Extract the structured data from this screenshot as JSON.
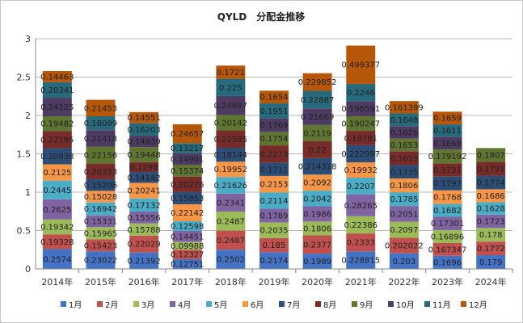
{
  "chart_data": {
    "type": "bar",
    "stacked": true,
    "title": "QYLD　分配金推移",
    "xlabel": "",
    "ylabel": "",
    "ylim": [
      0,
      3
    ],
    "yticks": [
      "0",
      "0.5",
      "1",
      "1.5",
      "2",
      "2.5",
      "3"
    ],
    "grid": true,
    "legend_position": "bottom",
    "categories": [
      "2014年",
      "2015年",
      "2016年",
      "2017年",
      "2018年",
      "2019年",
      "2020年",
      "2021年",
      "2022年",
      "2023年",
      "2024年"
    ],
    "series": [
      {
        "name": "1月",
        "color": "#4472C4",
        "values": [
          0.2574,
          0.23022,
          0.21392,
          0.12751,
          0.2502,
          0.2174,
          0.1989,
          0.228815,
          0.203,
          0.1696,
          0.179
        ]
      },
      {
        "name": "2月",
        "color": "#C0504D",
        "values": [
          0.19328,
          0.15423,
          0.22029,
          0.12327,
          0.2487,
          0.185,
          0.2377,
          0.2333,
          0.202022,
          0.167347,
          0.1772
        ]
      },
      {
        "name": "3月",
        "color": "#9BBB59",
        "values": [
          0.19342,
          0.15965,
          0.15788,
          0.09988,
          0.2487,
          0.2035,
          0.1806,
          0.22386,
          0.2097,
          0.16896,
          0.178
        ]
      },
      {
        "name": "4月",
        "color": "#8064A2",
        "values": [
          0.2625,
          0.15331,
          0.15556,
          0.14451,
          0.2341,
          0.1789,
          0.1986,
          0.28265,
          0.2051,
          0.17301,
          0.1723
        ]
      },
      {
        "name": "5月",
        "color": "#4BACC6",
        "values": [
          0.2445,
          0.16942,
          0.17132,
          0.12598,
          0.21626,
          0.2114,
          0.2042,
          0.2207,
          0.1785,
          0.1682,
          0.1628
        ]
      },
      {
        "name": "6月",
        "color": "#F79646",
        "values": [
          0.2125,
          0.15028,
          0.20241,
          0.22142,
          0.19952,
          0.2153,
          0.2092,
          0.19932,
          0.1806,
          0.1768,
          0.1686
        ]
      },
      {
        "name": "7月",
        "color": "#2C4D75",
        "values": [
          0.20938,
          0.15206,
          0.14142,
          0.15853,
          0.18144,
          0.1711,
          0.214328,
          0.222997,
          0.1735,
          0.1797,
          0.1774
        ]
      },
      {
        "name": "8月",
        "color": "#772C2A",
        "values": [
          0.22185,
          0.20353,
          0.1298,
          0.20276,
          0.22585,
          0.2273,
          0.22,
          0.18781,
          0.1813,
          0.1731,
          0.1791
        ]
      },
      {
        "name": "9月",
        "color": "#5F7530",
        "values": [
          0.19482,
          0.22156,
          0.19448,
          0.15374,
          0.20142,
          0.1754,
          0.2119,
          0.190247,
          0.1653,
          0.179192,
          0.1807
        ]
      },
      {
        "name": "10月",
        "color": "#4D3B62",
        "values": [
          0.24125,
          0.21418,
          0.14939,
          0.14901,
          0.24697,
          0.1769,
          0.21669,
          0.196591,
          0.1626,
          0.1668,
          null
        ]
      },
      {
        "name": "11月",
        "color": "#276A7C",
        "values": [
          0.20341,
          0.18099,
          0.16203,
          0.13217,
          0.225,
          0.1951,
          0.22887,
          0.2246,
          0.1648,
          0.1611,
          null
        ]
      },
      {
        "name": "12月",
        "color": "#B65708",
        "values": [
          0.14463,
          0.21453,
          0.14551,
          0.24657,
          0.1721,
          0.1654,
          0.229852,
          0.499377,
          0.161399,
          0.1659,
          null
        ]
      }
    ],
    "labels": [
      [
        "0.2574",
        "0.23022",
        "0.21392",
        "0.12751",
        "0.2502",
        "0.2174",
        "0.1989",
        "0.228815",
        "0.203",
        "0.1696",
        "0.179"
      ],
      [
        "0.19328",
        "0.15423",
        "0.22029",
        "0.12327",
        "0.2487",
        "0.185",
        "0.2377",
        "0.2333",
        "0.202022",
        "0.167347",
        "0.1772"
      ],
      [
        "0.19342",
        "0.15965",
        "0.15788",
        "0.09988",
        "0.2487",
        "0.2035",
        "0.1806",
        "0.22386",
        "0.2097",
        "0.16896",
        "0.178"
      ],
      [
        "0.2625",
        "0.15331",
        "0.15556",
        "0.14451",
        "0.2341",
        "0.1789",
        "0.1986",
        "0.28265",
        "0.2051",
        "0.17301",
        "0.1723"
      ],
      [
        "0.2445",
        "0.16942",
        "0.17132",
        "0.12598",
        "0.21626",
        "0.2114",
        "0.2042",
        "0.2207",
        "0.1785",
        "0.1682",
        "0.1628"
      ],
      [
        "0.2125",
        "0.15028",
        "0.20241",
        "0.22142",
        "0.19952",
        "0.2153",
        "0.2092",
        "0.19932",
        "0.1806",
        "0.1768",
        "0.1686"
      ],
      [
        "0.20938",
        "0.15206",
        "0.14142",
        "0.15853",
        "0.18144",
        "0.1711",
        "0.214328",
        "0.222997",
        "0.1735",
        "0.1797",
        "0.1774"
      ],
      [
        "0.22185",
        "0.20353",
        "0.1298",
        "0.20276",
        "0.22585",
        "0.2273",
        "0.22",
        "0.18781",
        "0.1813",
        "0.1731",
        "0.1791"
      ],
      [
        "0.19482",
        "0.22156",
        "0.19448",
        "0.15374",
        "0.20142",
        "0.1754",
        "0.2119",
        "0.190247",
        "0.1653",
        "0.179192",
        "0.1807"
      ],
      [
        "0.24125",
        "0.21418",
        "0.14939",
        "0.14901",
        "0.24697",
        "0.1769",
        "0.21669",
        "0.196591",
        "0.1626",
        "0.1668",
        ""
      ],
      [
        "0.20341",
        "0.18099",
        "0.16203",
        "0.13217",
        "0.225",
        "0.1951",
        "0.22887",
        "0.2246",
        "0.1648",
        "0.1611",
        ""
      ],
      [
        "0.14463",
        "0.21453",
        "0.14551",
        "0.24657",
        "0.1721",
        "0.1654",
        "0.229852",
        "0.499377",
        "0.161399",
        "0.1659",
        ""
      ]
    ]
  }
}
